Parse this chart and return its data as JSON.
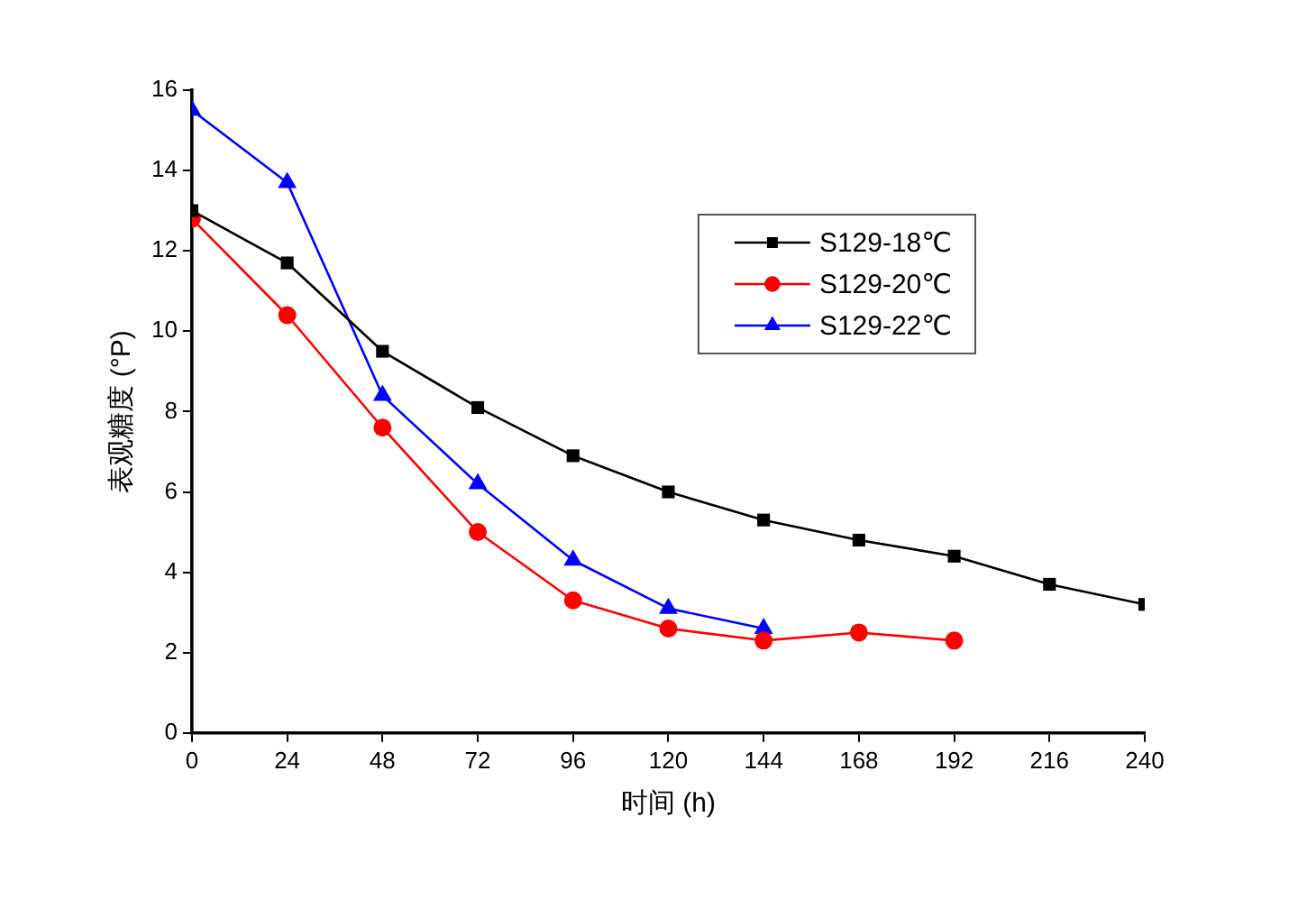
{
  "chart_data": {
    "type": "line",
    "xlabel": "时间 (h)",
    "ylabel": "表观糖度 (°P)",
    "xlim": [
      0,
      240
    ],
    "xticks": [
      0,
      24,
      48,
      72,
      96,
      120,
      144,
      168,
      192,
      216,
      240
    ],
    "ylim": [
      0,
      16
    ],
    "yticks": [
      0,
      2,
      4,
      6,
      8,
      10,
      12,
      14,
      16
    ],
    "grid": false,
    "legend": "top right",
    "line_style": "solid",
    "series": [
      {
        "name": "S129-18℃",
        "color": "#000000",
        "marker": "square",
        "x": [
          0,
          24,
          48,
          72,
          96,
          120,
          144,
          168,
          192,
          216,
          240
        ],
        "values": [
          13,
          11.7,
          9.5,
          8.1,
          6.9,
          6.0,
          5.3,
          4.8,
          4.4,
          3.7,
          3.2
        ]
      },
      {
        "name": "S129-20℃",
        "color": "#ff0000",
        "marker": "circle",
        "x": [
          0,
          24,
          48,
          72,
          96,
          120,
          144,
          168,
          192
        ],
        "values": [
          12.8,
          10.4,
          7.6,
          5.0,
          3.3,
          2.6,
          2.3,
          2.5,
          2.3
        ]
      },
      {
        "name": "S129-22℃",
        "color": "#0000ff",
        "marker": "triangle",
        "x": [
          0,
          24,
          48,
          72,
          96,
          120,
          144
        ],
        "values": [
          15.5,
          13.7,
          8.4,
          6.2,
          4.3,
          3.1,
          2.6
        ]
      }
    ]
  }
}
